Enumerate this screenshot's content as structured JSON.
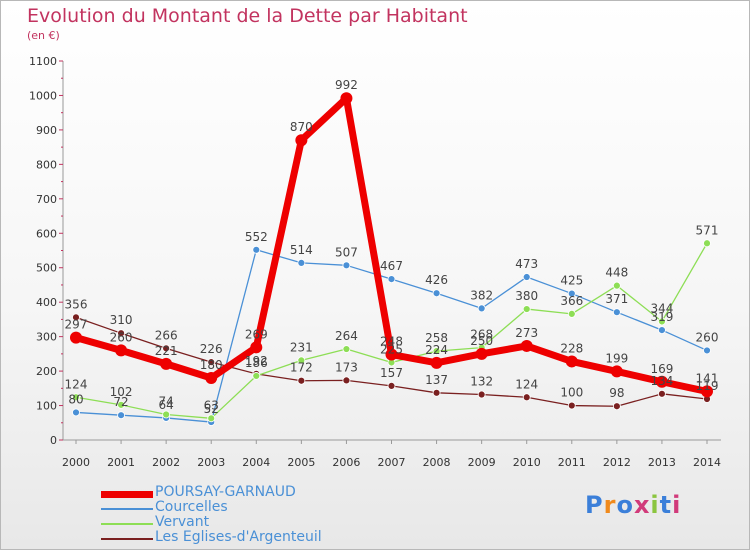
{
  "header": {
    "title": "Evolution du Montant de la Dette par Habitant",
    "subtitle": "(en €)"
  },
  "logo_text": "Proxiti",
  "chart_data": {
    "type": "line",
    "title": "Evolution du Montant de la Dette par Habitant",
    "subtitle": "(en €)",
    "x": [
      "2000",
      "2001",
      "2002",
      "2003",
      "2004",
      "2005",
      "2006",
      "2007",
      "2008",
      "2009",
      "2010",
      "2011",
      "2012",
      "2013",
      "2014"
    ],
    "ylim": [
      0,
      1100
    ],
    "yticks": [
      0,
      100,
      200,
      300,
      400,
      500,
      600,
      700,
      800,
      900,
      1000,
      1100
    ],
    "grid": false,
    "legend_position": "bottom-left",
    "series": [
      {
        "name": "POURSAY-GARNAUD",
        "color": "#ee0000",
        "values": [
          297,
          260,
          221,
          180,
          269,
          870,
          992,
          248,
          224,
          250,
          273,
          228,
          199,
          169,
          141
        ]
      },
      {
        "name": "Courcelles",
        "color": "#4a90d6",
        "values": [
          80,
          72,
          64,
          52,
          552,
          514,
          507,
          467,
          426,
          382,
          473,
          425,
          371,
          319,
          260
        ]
      },
      {
        "name": "Vervant",
        "color": "#8dde55",
        "values": [
          124,
          102,
          74,
          63,
          186,
          231,
          264,
          225,
          258,
          268,
          380,
          366,
          448,
          344,
          571
        ]
      },
      {
        "name": "Les Eglises-d'Argenteuil",
        "color": "#7a2020",
        "values": [
          356,
          310,
          266,
          226,
          192,
          172,
          173,
          157,
          137,
          132,
          124,
          100,
          98,
          134,
          119
        ]
      }
    ],
    "data_labels": [
      {
        "series": 0,
        "labels": [
          "297",
          "260",
          "221",
          "180",
          "269",
          "870",
          "992",
          "248",
          "224",
          "250",
          "273",
          "228",
          "199",
          "169",
          "141"
        ]
      },
      {
        "series": 1,
        "labels": [
          "80",
          "72",
          "64",
          "52",
          "552",
          "514",
          "507",
          "467",
          "426",
          "382",
          "473",
          "425",
          "371",
          "319",
          "260"
        ]
      },
      {
        "series": 2,
        "labels": [
          "124",
          "102",
          "74",
          "63",
          "186",
          "231",
          "264",
          "225",
          "258",
          "268",
          "380",
          "366",
          "448",
          "344",
          "571"
        ]
      },
      {
        "series": 3,
        "labels": [
          "356",
          "310",
          "266",
          "226",
          "192",
          "172",
          "173",
          "157",
          "137",
          "132",
          "124",
          "100",
          "98",
          "134",
          "119"
        ]
      }
    ]
  }
}
